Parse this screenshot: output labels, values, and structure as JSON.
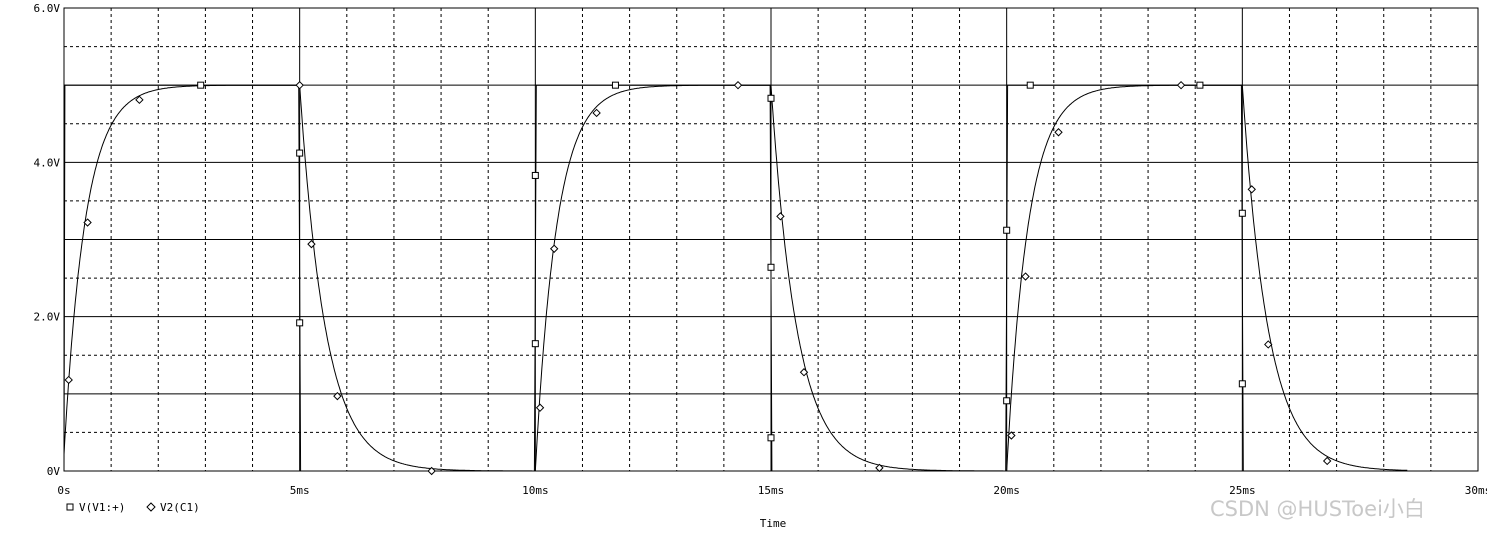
{
  "chart_data": {
    "type": "line",
    "xlabel": "Time",
    "ylabel": "",
    "xlim": [
      0,
      30
    ],
    "ylim": [
      0,
      6
    ],
    "x_ticks": [
      0,
      5,
      10,
      15,
      20,
      25,
      30
    ],
    "x_tick_labels": [
      "0s",
      "5ms",
      "10ms",
      "15ms",
      "20ms",
      "25ms",
      "30ms"
    ],
    "y_ticks": [
      0,
      2,
      4,
      6
    ],
    "y_tick_labels": [
      "0V",
      "2.0V",
      "4.0V",
      "6.0V"
    ],
    "grid": true,
    "legend": "bottom-left",
    "series": [
      {
        "name": "V(V1:+)",
        "marker": "square",
        "points": [
          [
            2.9,
            5.0
          ],
          [
            5.0,
            4.12
          ],
          [
            5.0,
            1.92
          ],
          [
            10.0,
            3.83
          ],
          [
            10.0,
            1.65
          ],
          [
            11.7,
            5.0
          ],
          [
            15.0,
            4.83
          ],
          [
            15.0,
            2.64
          ],
          [
            15.0,
            0.43
          ],
          [
            20.0,
            3.12
          ],
          [
            20.0,
            0.91
          ],
          [
            20.5,
            5.0
          ],
          [
            24.1,
            5.0
          ],
          [
            25.0,
            3.34
          ],
          [
            25.0,
            1.13
          ]
        ]
      },
      {
        "name": "V2(C1)",
        "marker": "diamond",
        "points": [
          [
            0.1,
            1.18
          ],
          [
            0.5,
            3.22
          ],
          [
            1.6,
            4.81
          ],
          [
            5.0,
            5.0
          ],
          [
            5.25,
            2.94
          ],
          [
            5.8,
            0.97
          ],
          [
            7.8,
            0.0
          ],
          [
            10.1,
            0.82
          ],
          [
            10.4,
            2.88
          ],
          [
            11.3,
            4.64
          ],
          [
            14.3,
            5.0
          ],
          [
            15.2,
            3.3
          ],
          [
            15.7,
            1.28
          ],
          [
            17.3,
            0.04
          ],
          [
            20.1,
            0.46
          ],
          [
            20.4,
            2.52
          ],
          [
            21.1,
            4.39
          ],
          [
            23.7,
            5.0
          ],
          [
            25.2,
            3.65
          ],
          [
            25.55,
            1.64
          ],
          [
            26.8,
            0.13
          ]
        ]
      }
    ]
  },
  "watermark": "CSDN @HUSToei小白"
}
